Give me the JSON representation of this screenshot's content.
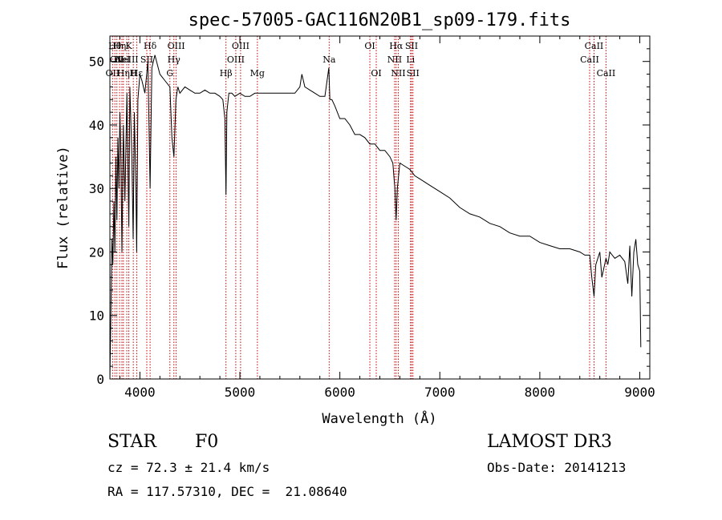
{
  "chart_data": {
    "type": "line",
    "title": "spec-57005-GAC116N20B1_sp09-179.fits",
    "xlabel": "Wavelength (Å)",
    "ylabel": "Flux (relative)",
    "xlim": [
      3700,
      9100
    ],
    "ylim": [
      0,
      54
    ],
    "x_ticks": [
      4000,
      5000,
      6000,
      7000,
      8000,
      9000
    ],
    "y_ticks": [
      0,
      10,
      20,
      30,
      40,
      50
    ],
    "series": [
      {
        "name": "spectrum",
        "x": [
          3700,
          3710,
          3720,
          3730,
          3740,
          3750,
          3760,
          3770,
          3780,
          3790,
          3800,
          3810,
          3820,
          3835,
          3850,
          3870,
          3889,
          3900,
          3920,
          3933,
          3945,
          3960,
          3968,
          3980,
          4000,
          4020,
          4050,
          4080,
          4102,
          4120,
          4150,
          4200,
          4250,
          4300,
          4320,
          4340,
          4360,
          4380,
          4400,
          4450,
          4500,
          4550,
          4600,
          4650,
          4700,
          4750,
          4800,
          4830,
          4850,
          4861,
          4870,
          4890,
          4920,
          4950,
          5000,
          5050,
          5100,
          5150,
          5200,
          5300,
          5400,
          5500,
          5550,
          5600,
          5620,
          5650,
          5700,
          5750,
          5800,
          5850,
          5890,
          5900,
          5920,
          5950,
          6000,
          6050,
          6100,
          6150,
          6200,
          6250,
          6300,
          6350,
          6400,
          6450,
          6500,
          6530,
          6550,
          6563,
          6575,
          6600,
          6650,
          6700,
          6750,
          6800,
          6850,
          6900,
          6950,
          7000,
          7100,
          7200,
          7300,
          7400,
          7500,
          7600,
          7700,
          7800,
          7900,
          8000,
          8100,
          8200,
          8300,
          8400,
          8450,
          8500,
          8520,
          8542,
          8560,
          8600,
          8620,
          8662,
          8680,
          8700,
          8750,
          8800,
          8850,
          8880,
          8900,
          8920,
          8940,
          8960,
          8980,
          9000,
          9010
        ],
        "y": [
          0,
          10,
          22,
          18,
          28,
          20,
          35,
          25,
          38,
          30,
          42,
          35,
          20,
          40,
          28,
          45,
          24,
          46,
          35,
          22,
          42,
          30,
          20,
          44,
          48,
          47,
          45,
          50,
          30,
          49,
          51,
          48,
          47,
          46,
          38,
          35,
          44,
          46,
          45,
          46,
          45.5,
          45,
          45,
          45.5,
          45,
          45,
          44.5,
          44,
          41,
          29,
          42,
          45,
          45,
          44.5,
          45,
          44.5,
          44.5,
          45,
          45,
          45,
          45,
          45,
          45,
          46,
          48,
          46,
          45.5,
          45,
          44.5,
          44.5,
          49,
          44,
          44,
          43,
          41,
          41,
          40,
          38.5,
          38.5,
          38,
          37,
          37,
          36,
          36,
          35,
          34,
          30,
          25,
          30,
          34,
          33.5,
          33,
          32,
          31.5,
          31,
          30.5,
          30,
          29.5,
          28.5,
          27,
          26,
          25.5,
          24.5,
          24,
          23,
          22.5,
          22.5,
          21.5,
          21,
          20.5,
          20.5,
          20,
          19.5,
          19.5,
          16,
          13,
          18,
          20,
          16,
          19,
          18,
          20,
          19,
          19.5,
          18.5,
          15,
          21,
          13,
          20,
          22,
          18,
          17,
          5
        ]
      }
    ],
    "lines": [
      {
        "wl": 3727,
        "label": "OII",
        "row": 3
      },
      {
        "wl": 3750,
        "label": "Hθ",
        "row": 1
      },
      {
        "wl": 3770,
        "label": "OII",
        "row": 2
      },
      {
        "wl": 3797,
        "label": "Hη",
        "row": 1
      },
      {
        "wl": 3820,
        "label": "HeI",
        "row": 2
      },
      {
        "wl": 3835,
        "label": "Hη",
        "row": 3
      },
      {
        "wl": 3869,
        "label": "NeIII",
        "row": 2
      },
      {
        "wl": 3889,
        "label": "K",
        "row": 1
      },
      {
        "wl": 3934,
        "label": "H",
        "row": 3
      },
      {
        "wl": 3968,
        "label": "Hε",
        "row": 3
      },
      {
        "wl": 4102,
        "label": "Hδ",
        "row": 1
      },
      {
        "wl": 4069,
        "label": "SII",
        "row": 2
      },
      {
        "wl": 4300,
        "label": "G",
        "row": 3
      },
      {
        "wl": 4340,
        "label": "Hγ",
        "row": 2
      },
      {
        "wl": 4363,
        "label": "OIII",
        "row": 1
      },
      {
        "wl": 4861,
        "label": "Hβ",
        "row": 3
      },
      {
        "wl": 4959,
        "label": "OIII",
        "row": 2
      },
      {
        "wl": 5007,
        "label": "OIII",
        "row": 1
      },
      {
        "wl": 5175,
        "label": "Mg",
        "row": 3
      },
      {
        "wl": 5893,
        "label": "Na",
        "row": 2
      },
      {
        "wl": 6300,
        "label": "OI",
        "row": 1
      },
      {
        "wl": 6364,
        "label": "OI",
        "row": 3
      },
      {
        "wl": 6548,
        "label": "NII",
        "row": 2
      },
      {
        "wl": 6563,
        "label": "Hα",
        "row": 1
      },
      {
        "wl": 6584,
        "label": "NII",
        "row": 3
      },
      {
        "wl": 6707,
        "label": "Li",
        "row": 2
      },
      {
        "wl": 6717,
        "label": "SII",
        "row": 1
      },
      {
        "wl": 6731,
        "label": "SII",
        "row": 3
      },
      {
        "wl": 8498,
        "label": "CaII",
        "row": 2
      },
      {
        "wl": 8542,
        "label": "CaII",
        "row": 1
      },
      {
        "wl": 8662,
        "label": "CaII",
        "row": 3
      }
    ]
  },
  "info": {
    "object_class": "STAR",
    "subclass": "F0",
    "survey": "LAMOST DR3",
    "cz": "cz = 72.3 ± 21.4 km/s",
    "obs_date": "Obs-Date: 20141213",
    "coords": "RA = 117.57310, DEC =  21.08640"
  },
  "colors": {
    "spectrum": "#000000",
    "line_marker": "#cc0000",
    "background": "#ffffff"
  }
}
